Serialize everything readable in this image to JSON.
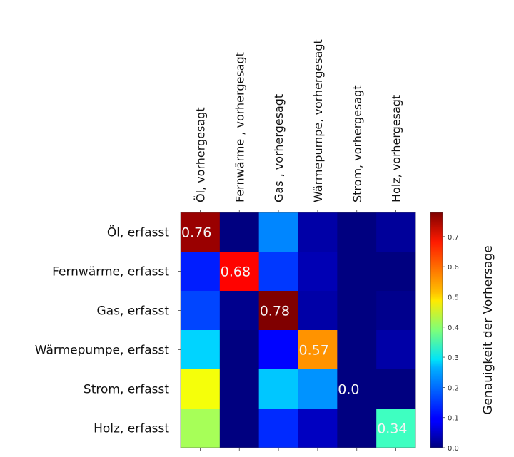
{
  "chart_data": {
    "type": "heatmap",
    "title": "",
    "row_labels": [
      "Öl, erfasst",
      "Fernwärme, erfasst",
      "Gas, erfasst",
      "Wärmepumpe, erfasst",
      "Strom, erfasst",
      "Holz, erfasst"
    ],
    "col_labels": [
      "Öl, vorhergesagt",
      "Fernwärme , vorhergesagt",
      "Gas , vorhergesagt",
      "Wärmepumpe, vorhergesagt",
      "Strom, vorhergesagt",
      "Holz, vorhergesagt"
    ],
    "values": [
      [
        0.76,
        0.0,
        0.2,
        0.03,
        0.0,
        0.02
      ],
      [
        0.12,
        0.68,
        0.14,
        0.04,
        0.0,
        0.0
      ],
      [
        0.15,
        0.01,
        0.78,
        0.03,
        0.0,
        0.01
      ],
      [
        0.26,
        0.0,
        0.1,
        0.57,
        0.0,
        0.03
      ],
      [
        0.48,
        0.0,
        0.25,
        0.21,
        0.0,
        0.0
      ],
      [
        0.42,
        0.0,
        0.13,
        0.05,
        0.0,
        0.34
      ]
    ],
    "annotations": [
      {
        "row": 0,
        "col": 0,
        "text": "0.76"
      },
      {
        "row": 1,
        "col": 1,
        "text": "0.68"
      },
      {
        "row": 2,
        "col": 2,
        "text": "0.78"
      },
      {
        "row": 3,
        "col": 3,
        "text": "0.57"
      },
      {
        "row": 4,
        "col": 4,
        "text": "0.0"
      },
      {
        "row": 5,
        "col": 5,
        "text": "0.34"
      }
    ],
    "colormap": "jet",
    "vmin": 0.0,
    "vmax": 0.78,
    "colorbar": {
      "label": "Genauigkeit der Vorhersage",
      "ticks": [
        0.0,
        0.1,
        0.2,
        0.3,
        0.4,
        0.5,
        0.6,
        0.7
      ],
      "tick_labels": [
        "0.0",
        "0.1",
        "0.2",
        "0.3",
        "0.4",
        "0.5",
        "0.6",
        "0.7"
      ]
    },
    "xlabel": "",
    "ylabel": "",
    "x_tick_position": "top"
  }
}
